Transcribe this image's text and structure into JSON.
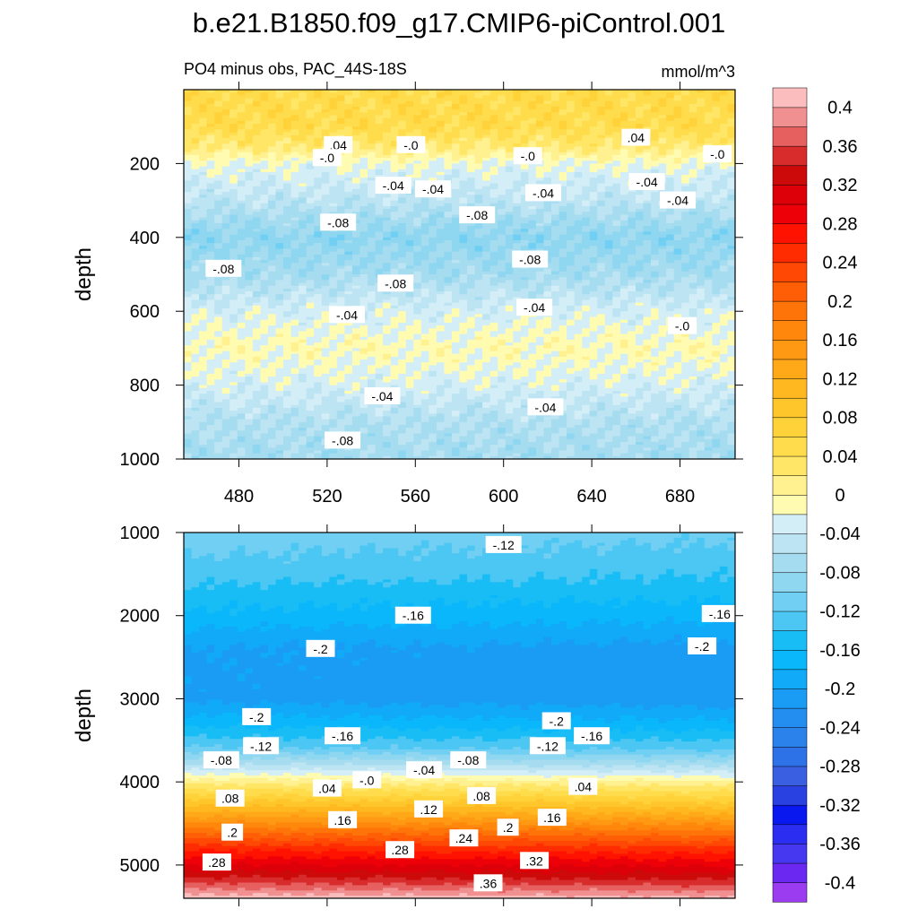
{
  "figure_title": "b.e21.B1850.f09_g17.CMIP6-piControl.001",
  "colorbar": {
    "levels": [
      -0.42,
      -0.4,
      -0.38,
      -0.36,
      -0.34,
      -0.32,
      -0.3,
      -0.28,
      -0.26,
      -0.24,
      -0.22,
      -0.2,
      -0.18,
      -0.16,
      -0.14,
      -0.12,
      -0.1,
      -0.08,
      -0.06,
      -0.04,
      -0.02,
      0.0,
      0.02,
      0.04,
      0.06,
      0.08,
      0.1,
      0.12,
      0.14,
      0.16,
      0.18,
      0.2,
      0.22,
      0.24,
      0.26,
      0.28,
      0.3,
      0.32,
      0.34,
      0.36,
      0.38,
      0.4,
      0.42
    ],
    "colors": [
      "#9b3cf0",
      "#6a28f0",
      "#4637f0",
      "#2b2ef0",
      "#0a18f0",
      "#2841e0",
      "#3a5fe0",
      "#2e72e8",
      "#2b82ea",
      "#238ef0",
      "#1a9cf5",
      "#10aaf8",
      "#0ab7fb",
      "#18bdf5",
      "#4cc6f2",
      "#70cff2",
      "#8fd6f0",
      "#a6dcf0",
      "#bde4f2",
      "#d4eef8",
      "#fffbb0",
      "#fff090",
      "#ffe666",
      "#ffdc4c",
      "#ffd23a",
      "#ffc62c",
      "#ffb820",
      "#ffa818",
      "#ff9812",
      "#ff880c",
      "#ff7408",
      "#ff5e06",
      "#ff4804",
      "#ff2c02",
      "#ff1200",
      "#ee0008",
      "#dd0008",
      "#cc0a0a",
      "#d82c2c",
      "#e66060",
      "#f09090",
      "#fbbdbd"
    ],
    "tick_labels": [
      "-0.4",
      "-0.36",
      "-0.32",
      "-0.28",
      "-0.24",
      "-0.2",
      "-0.16",
      "-0.12",
      "-0.08",
      "-0.04",
      "0",
      "0.04",
      "0.08",
      "0.12",
      "0.16",
      "0.2",
      "0.24",
      "0.28",
      "0.32",
      "0.36",
      "0.4"
    ],
    "tick_values": [
      -0.4,
      -0.36,
      -0.32,
      -0.28,
      -0.24,
      -0.2,
      -0.16,
      -0.12,
      -0.08,
      -0.04,
      0.0,
      0.04,
      0.08,
      0.12,
      0.16,
      0.2,
      0.24,
      0.28,
      0.32,
      0.36,
      0.4
    ]
  },
  "chart_data": [
    {
      "type": "heatmap",
      "title": "PO4 minus obs, PAC_44S-18S",
      "units": "mmol/m^3",
      "xlabel": "",
      "ylabel": "depth",
      "xlim": [
        455,
        705
      ],
      "ylim": [
        0,
        1000
      ],
      "y_reversed": true,
      "x_ticks": [
        480,
        520,
        560,
        600,
        640,
        680
      ],
      "x_tick_labels": [
        "480",
        "520",
        "560",
        "600",
        "640",
        "680"
      ],
      "y_ticks": [
        200,
        400,
        600,
        800,
        1000
      ],
      "y_tick_labels": [
        "200",
        "400",
        "600",
        "800",
        "1000"
      ],
      "depth_profile": [
        {
          "z": 0,
          "v": 0.05
        },
        {
          "z": 100,
          "v": 0.05
        },
        {
          "z": 160,
          "v": 0.02
        },
        {
          "z": 200,
          "v": -0.02
        },
        {
          "z": 300,
          "v": -0.05
        },
        {
          "z": 400,
          "v": -0.09
        },
        {
          "z": 500,
          "v": -0.07
        },
        {
          "z": 600,
          "v": -0.03
        },
        {
          "z": 700,
          "v": -0.01
        },
        {
          "z": 800,
          "v": -0.03
        },
        {
          "z": 900,
          "v": -0.06
        },
        {
          "z": 1000,
          "v": -0.07
        }
      ],
      "contour_labels": [
        {
          "text": ".04",
          "x": 525,
          "z": 150
        },
        {
          "text": "-.0",
          "x": 520,
          "z": 185
        },
        {
          "text": "-.0",
          "x": 558,
          "z": 150
        },
        {
          "text": "-.0",
          "x": 611,
          "z": 180
        },
        {
          "text": ".04",
          "x": 660,
          "z": 130
        },
        {
          "text": "-.0",
          "x": 697,
          "z": 175
        },
        {
          "text": "-.04",
          "x": 550,
          "z": 260
        },
        {
          "text": "-.04",
          "x": 568,
          "z": 270
        },
        {
          "text": "-.04",
          "x": 618,
          "z": 280
        },
        {
          "text": "-.04",
          "x": 665,
          "z": 250
        },
        {
          "text": "-.04",
          "x": 679,
          "z": 300
        },
        {
          "text": "-.08",
          "x": 525,
          "z": 360
        },
        {
          "text": "-.08",
          "x": 588,
          "z": 340
        },
        {
          "text": "-.08",
          "x": 612,
          "z": 460
        },
        {
          "text": "-.08",
          "x": 473,
          "z": 485
        },
        {
          "text": "-.08",
          "x": 551,
          "z": 525
        },
        {
          "text": "-.04",
          "x": 614,
          "z": 590
        },
        {
          "text": "-.04",
          "x": 529,
          "z": 610
        },
        {
          "text": "-.0",
          "x": 681,
          "z": 640
        },
        {
          "text": "-.04",
          "x": 545,
          "z": 830
        },
        {
          "text": "-.04",
          "x": 619,
          "z": 860
        },
        {
          "text": "-.08",
          "x": 527,
          "z": 950
        }
      ]
    },
    {
      "type": "heatmap",
      "title": "",
      "xlabel": "",
      "ylabel": "depth",
      "xlim": [
        455,
        705
      ],
      "ylim": [
        1000,
        5400
      ],
      "y_reversed": true,
      "y_ticks": [
        1000,
        2000,
        3000,
        4000,
        5000
      ],
      "y_tick_labels": [
        "1000",
        "2000",
        "3000",
        "4000",
        "5000"
      ],
      "depth_profile": [
        {
          "z": 1000,
          "v": -0.11
        },
        {
          "z": 1500,
          "v": -0.135
        },
        {
          "z": 2000,
          "v": -0.17
        },
        {
          "z": 2400,
          "v": -0.205
        },
        {
          "z": 3000,
          "v": -0.21
        },
        {
          "z": 3300,
          "v": -0.17
        },
        {
          "z": 3600,
          "v": -0.12
        },
        {
          "z": 3800,
          "v": -0.06
        },
        {
          "z": 3950,
          "v": -0.01
        },
        {
          "z": 4000,
          "v": 0.01
        },
        {
          "z": 4200,
          "v": 0.07
        },
        {
          "z": 4500,
          "v": 0.16
        },
        {
          "z": 4800,
          "v": 0.25
        },
        {
          "z": 5000,
          "v": 0.3
        },
        {
          "z": 5200,
          "v": 0.35
        },
        {
          "z": 5400,
          "v": 0.41
        }
      ],
      "contour_labels": [
        {
          "text": "-.12",
          "x": 600,
          "z": 1150
        },
        {
          "text": "-.16",
          "x": 559,
          "z": 2000
        },
        {
          "text": "-.16",
          "x": 698,
          "z": 1980
        },
        {
          "text": "-.2",
          "x": 517,
          "z": 2400
        },
        {
          "text": "-.2",
          "x": 690,
          "z": 2370
        },
        {
          "text": "-.2",
          "x": 488,
          "z": 3220
        },
        {
          "text": "-.2",
          "x": 624,
          "z": 3270
        },
        {
          "text": "-.16",
          "x": 527,
          "z": 3450
        },
        {
          "text": "-.16",
          "x": 640,
          "z": 3450
        },
        {
          "text": "-.12",
          "x": 490,
          "z": 3570
        },
        {
          "text": "-.12",
          "x": 620,
          "z": 3570
        },
        {
          "text": "-.08",
          "x": 472,
          "z": 3740
        },
        {
          "text": "-.08",
          "x": 584,
          "z": 3740
        },
        {
          "text": "-.04",
          "x": 564,
          "z": 3860
        },
        {
          "text": "-.0",
          "x": 538,
          "z": 3980
        },
        {
          "text": ".04",
          "x": 520,
          "z": 4080
        },
        {
          "text": ".04",
          "x": 636,
          "z": 4060
        },
        {
          "text": ".08",
          "x": 476,
          "z": 4200
        },
        {
          "text": ".08",
          "x": 590,
          "z": 4170
        },
        {
          "text": ".12",
          "x": 566,
          "z": 4330
        },
        {
          "text": ".16",
          "x": 527,
          "z": 4460
        },
        {
          "text": ".16",
          "x": 622,
          "z": 4430
        },
        {
          "text": ".2",
          "x": 477,
          "z": 4610
        },
        {
          "text": ".2",
          "x": 602,
          "z": 4550
        },
        {
          "text": ".24",
          "x": 582,
          "z": 4680
        },
        {
          "text": ".28",
          "x": 553,
          "z": 4820
        },
        {
          "text": ".28",
          "x": 470,
          "z": 4970
        },
        {
          "text": ".32",
          "x": 614,
          "z": 4950
        },
        {
          "text": ".36",
          "x": 593,
          "z": 5220
        }
      ]
    }
  ]
}
